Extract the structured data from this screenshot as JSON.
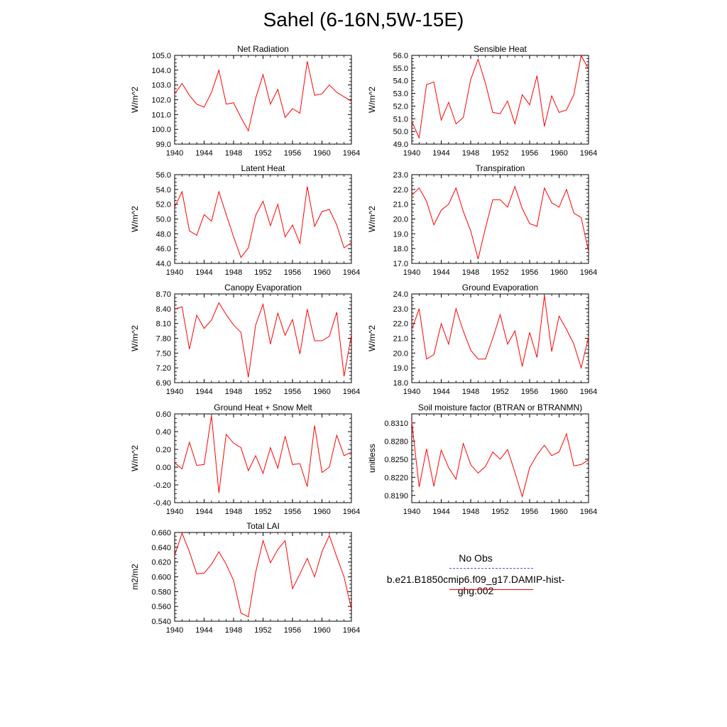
{
  "title": "Sahel (6-16N,5W-15E)",
  "legend": {
    "obs_label": "No Obs",
    "run_label": "b.e21.B1850cmip6.f09_g17.DAMIP-hist-ghg.002",
    "obs_color": "#4a5ac8",
    "run_color": "#ff0000"
  },
  "chart_data": [
    {
      "type": "line",
      "title": "Net Radiation",
      "ylabel": "W/m^2",
      "xlim": [
        1940,
        1964
      ],
      "ylim": [
        99.0,
        105.0
      ],
      "xticks": [
        1940,
        1944,
        1948,
        1952,
        1956,
        1960,
        1964
      ],
      "yticks": [
        "99.0",
        "100.0",
        "101.0",
        "102.0",
        "103.0",
        "104.0",
        "105.0"
      ],
      "x": [
        1940,
        1941,
        1942,
        1943,
        1944,
        1945,
        1946,
        1947,
        1948,
        1949,
        1950,
        1951,
        1952,
        1953,
        1954,
        1955,
        1956,
        1957,
        1958,
        1959,
        1960,
        1961,
        1962,
        1963,
        1964
      ],
      "values": [
        102.4,
        103.1,
        102.3,
        101.7,
        101.5,
        102.5,
        104.0,
        101.7,
        101.8,
        100.8,
        99.9,
        102.1,
        103.7,
        101.7,
        102.7,
        100.8,
        101.4,
        101.1,
        104.6,
        102.3,
        102.4,
        103.0,
        102.5,
        102.2,
        101.9
      ]
    },
    {
      "type": "line",
      "title": "Sensible Heat",
      "ylabel": "W/m^2",
      "xlim": [
        1940,
        1964
      ],
      "ylim": [
        49.0,
        56.0
      ],
      "xticks": [
        1940,
        1944,
        1948,
        1952,
        1956,
        1960,
        1964
      ],
      "yticks": [
        "49.0",
        "50.0",
        "51.0",
        "52.0",
        "53.0",
        "54.0",
        "55.0",
        "56.0"
      ],
      "x": [
        1940,
        1941,
        1942,
        1943,
        1944,
        1945,
        1946,
        1947,
        1948,
        1949,
        1950,
        1951,
        1952,
        1953,
        1954,
        1955,
        1956,
        1957,
        1958,
        1959,
        1960,
        1961,
        1962,
        1963,
        1964
      ],
      "values": [
        50.8,
        49.5,
        53.7,
        53.9,
        50.9,
        52.3,
        50.6,
        51.1,
        54.1,
        55.7,
        53.8,
        51.5,
        51.4,
        52.4,
        50.6,
        52.9,
        52.1,
        54.4,
        50.4,
        52.8,
        51.5,
        51.7,
        52.9,
        56.0,
        54.9
      ]
    },
    {
      "type": "line",
      "title": "Latent Heat",
      "ylabel": "W/m^2",
      "xlim": [
        1940,
        1964
      ],
      "ylim": [
        44.0,
        56.0
      ],
      "xticks": [
        1940,
        1944,
        1948,
        1952,
        1956,
        1960,
        1964
      ],
      "yticks": [
        "44.0",
        "46.0",
        "48.0",
        "50.0",
        "52.0",
        "54.0",
        "56.0"
      ],
      "x": [
        1940,
        1941,
        1942,
        1943,
        1944,
        1945,
        1946,
        1947,
        1948,
        1949,
        1950,
        1951,
        1952,
        1953,
        1954,
        1955,
        1956,
        1957,
        1958,
        1959,
        1960,
        1961,
        1962,
        1963,
        1964
      ],
      "values": [
        51.6,
        53.7,
        48.4,
        47.8,
        50.6,
        49.7,
        53.7,
        50.6,
        47.6,
        44.8,
        46.1,
        50.5,
        52.4,
        49.1,
        52.0,
        47.6,
        49.2,
        46.7,
        54.4,
        49.0,
        51.0,
        51.3,
        49.2,
        46.1,
        46.8
      ]
    },
    {
      "type": "line",
      "title": "Transpiration",
      "ylabel": "W/m^2",
      "xlim": [
        1940,
        1964
      ],
      "ylim": [
        17.0,
        23.0
      ],
      "xticks": [
        1940,
        1944,
        1948,
        1952,
        1956,
        1960,
        1964
      ],
      "yticks": [
        "17.0",
        "18.0",
        "19.0",
        "20.0",
        "21.0",
        "22.0",
        "23.0"
      ],
      "x": [
        1940,
        1941,
        1942,
        1943,
        1944,
        1945,
        1946,
        1947,
        1948,
        1949,
        1950,
        1951,
        1952,
        1953,
        1954,
        1955,
        1956,
        1957,
        1958,
        1959,
        1960,
        1961,
        1962,
        1963,
        1964
      ],
      "values": [
        21.6,
        22.1,
        21.2,
        19.6,
        20.6,
        21.0,
        22.1,
        20.5,
        19.2,
        17.3,
        19.4,
        21.3,
        21.3,
        20.8,
        22.2,
        20.7,
        19.7,
        19.5,
        22.1,
        21.1,
        20.8,
        22.0,
        20.4,
        20.1,
        17.8
      ]
    },
    {
      "type": "line",
      "title": "Canopy Evaporation",
      "ylabel": "W/m^2",
      "xlim": [
        1940,
        1964
      ],
      "ylim": [
        6.9,
        8.7
      ],
      "xticks": [
        1940,
        1944,
        1948,
        1952,
        1956,
        1960,
        1964
      ],
      "yticks": [
        "6.90",
        "7.20",
        "7.50",
        "7.80",
        "8.10",
        "8.40",
        "8.70"
      ],
      "x": [
        1940,
        1941,
        1942,
        1943,
        1944,
        1945,
        1946,
        1947,
        1948,
        1949,
        1950,
        1951,
        1952,
        1953,
        1954,
        1955,
        1956,
        1957,
        1958,
        1959,
        1960,
        1961,
        1962,
        1963,
        1964
      ],
      "values": [
        8.39,
        8.44,
        7.58,
        8.27,
        8.0,
        8.17,
        8.52,
        8.28,
        8.07,
        7.92,
        7.01,
        8.07,
        8.49,
        7.68,
        8.31,
        7.86,
        8.18,
        7.48,
        8.39,
        7.75,
        7.75,
        7.84,
        8.33,
        7.03,
        7.87
      ]
    },
    {
      "type": "line",
      "title": "Ground Evaporation",
      "ylabel": "W/m^2",
      "xlim": [
        1940,
        1964
      ],
      "ylim": [
        18.0,
        24.0
      ],
      "xticks": [
        1940,
        1944,
        1948,
        1952,
        1956,
        1960,
        1964
      ],
      "yticks": [
        "18.0",
        "19.0",
        "20.0",
        "21.0",
        "22.0",
        "23.0",
        "24.0"
      ],
      "x": [
        1940,
        1941,
        1942,
        1943,
        1944,
        1945,
        1946,
        1947,
        1948,
        1949,
        1950,
        1951,
        1952,
        1953,
        1954,
        1955,
        1956,
        1957,
        1958,
        1959,
        1960,
        1961,
        1962,
        1963,
        1964
      ],
      "values": [
        21.6,
        23.0,
        19.6,
        19.9,
        22.0,
        20.6,
        23.0,
        21.5,
        20.2,
        19.6,
        19.6,
        21.0,
        22.6,
        20.6,
        21.5,
        19.1,
        21.4,
        19.7,
        23.9,
        20.1,
        22.5,
        21.6,
        20.6,
        19.0,
        21.1
      ]
    },
    {
      "type": "line",
      "title": "Ground Heat + Snow Melt",
      "ylabel": "W/m^2",
      "xlim": [
        1940,
        1964
      ],
      "ylim": [
        -0.4,
        0.6
      ],
      "xticks": [
        1940,
        1944,
        1948,
        1952,
        1956,
        1960,
        1964
      ],
      "yticks": [
        "-0.40",
        "-0.20",
        "0.00",
        "0.20",
        "0.40",
        "0.60"
      ],
      "x": [
        1940,
        1941,
        1942,
        1943,
        1944,
        1945,
        1946,
        1947,
        1948,
        1949,
        1950,
        1951,
        1952,
        1953,
        1954,
        1955,
        1956,
        1957,
        1958,
        1959,
        1960,
        1961,
        1962,
        1963,
        1964
      ],
      "values": [
        0.05,
        -0.02,
        0.28,
        0.02,
        0.03,
        0.58,
        -0.29,
        0.37,
        0.27,
        0.22,
        -0.04,
        0.13,
        -0.07,
        0.22,
        -0.01,
        0.35,
        0.03,
        0.04,
        -0.22,
        0.47,
        -0.06,
        0.0,
        0.36,
        0.13,
        0.17
      ]
    },
    {
      "type": "line",
      "title": "Soil moisture factor (BTRAN or BTRANMN)",
      "ylabel": "unitless",
      "xlim": [
        1940,
        1964
      ],
      "ylim": [
        0.8178,
        0.8325
      ],
      "xticks": [
        1940,
        1944,
        1948,
        1952,
        1956,
        1960,
        1964
      ],
      "yticks": [
        "0.8190",
        "0.8220",
        "0.8250",
        "0.8280",
        "0.8310"
      ],
      "x": [
        1940,
        1941,
        1942,
        1943,
        1944,
        1945,
        1946,
        1947,
        1948,
        1949,
        1950,
        1951,
        1952,
        1953,
        1954,
        1955,
        1956,
        1957,
        1958,
        1959,
        1960,
        1961,
        1962,
        1963,
        1964
      ],
      "values": [
        0.8312,
        0.8204,
        0.8267,
        0.8205,
        0.8265,
        0.8236,
        0.8217,
        0.8276,
        0.8241,
        0.8227,
        0.8238,
        0.8262,
        0.825,
        0.8266,
        0.8228,
        0.8188,
        0.8236,
        0.8257,
        0.8273,
        0.8256,
        0.8262,
        0.8292,
        0.8239,
        0.8241,
        0.8249
      ]
    },
    {
      "type": "line",
      "title": "Total LAI",
      "ylabel": "m2/m2",
      "xlim": [
        1940,
        1964
      ],
      "ylim": [
        0.54,
        0.66
      ],
      "xticks": [
        1940,
        1944,
        1948,
        1952,
        1956,
        1960,
        1964
      ],
      "yticks": [
        "0.540",
        "0.560",
        "0.580",
        "0.600",
        "0.620",
        "0.640",
        "0.660"
      ],
      "x": [
        1940,
        1941,
        1942,
        1943,
        1944,
        1945,
        1946,
        1947,
        1948,
        1949,
        1950,
        1951,
        1952,
        1953,
        1954,
        1955,
        1956,
        1957,
        1958,
        1959,
        1960,
        1961,
        1962,
        1963,
        1964
      ],
      "values": [
        0.629,
        0.659,
        0.634,
        0.604,
        0.605,
        0.617,
        0.634,
        0.617,
        0.595,
        0.551,
        0.546,
        0.606,
        0.649,
        0.619,
        0.637,
        0.649,
        0.584,
        0.604,
        0.625,
        0.6,
        0.634,
        0.656,
        0.627,
        0.6,
        0.556
      ]
    }
  ]
}
